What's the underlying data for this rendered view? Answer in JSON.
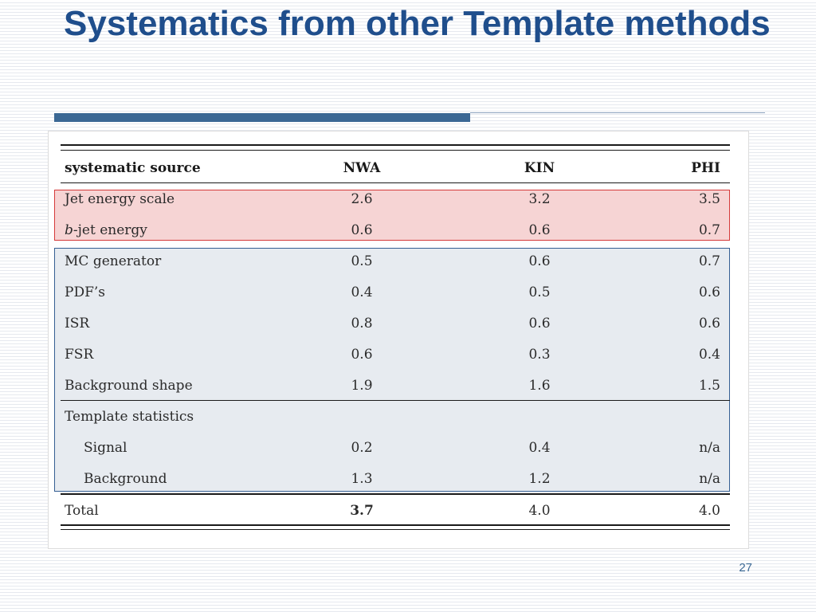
{
  "slide": {
    "title": "Systematics from other Template methods",
    "page_number": "27"
  },
  "table": {
    "columns": [
      "systematic source",
      "NWA",
      "KIN",
      "PHI"
    ],
    "rows": [
      {
        "label": "Jet energy scale",
        "nwa": "2.6",
        "kin": "3.2",
        "phi": "3.5"
      },
      {
        "label_italic": "b",
        "label": "-jet energy",
        "nwa": "0.6",
        "kin": "0.6",
        "phi": "0.7"
      },
      {
        "label": "MC generator",
        "nwa": "0.5",
        "kin": "0.6",
        "phi": "0.7"
      },
      {
        "label": "PDF’s",
        "nwa": "0.4",
        "kin": "0.5",
        "phi": "0.6"
      },
      {
        "label": "ISR",
        "nwa": "0.8",
        "kin": "0.6",
        "phi": "0.6"
      },
      {
        "label": "FSR",
        "nwa": "0.6",
        "kin": "0.3",
        "phi": "0.4"
      },
      {
        "label": "Background shape",
        "nwa": "1.9",
        "kin": "1.6",
        "phi": "1.5"
      },
      {
        "label": "Template statistics"
      },
      {
        "label": "Signal",
        "nwa": "0.2",
        "kin": "0.4",
        "phi": "n/a"
      },
      {
        "label": "Background",
        "nwa": "1.3",
        "kin": "1.2",
        "phi": "n/a"
      }
    ],
    "total": {
      "label": "Total",
      "nwa": "3.7",
      "kin": "4.0",
      "phi": "4.0"
    }
  },
  "colors": {
    "title": "#1f4e8c",
    "accent_bar": "#3b6894",
    "highlight_red_fill": "#f6d4d4",
    "highlight_red_border": "#d53a3a",
    "highlight_blue_fill": "#e7ebf0",
    "highlight_blue_border": "#355f93"
  }
}
